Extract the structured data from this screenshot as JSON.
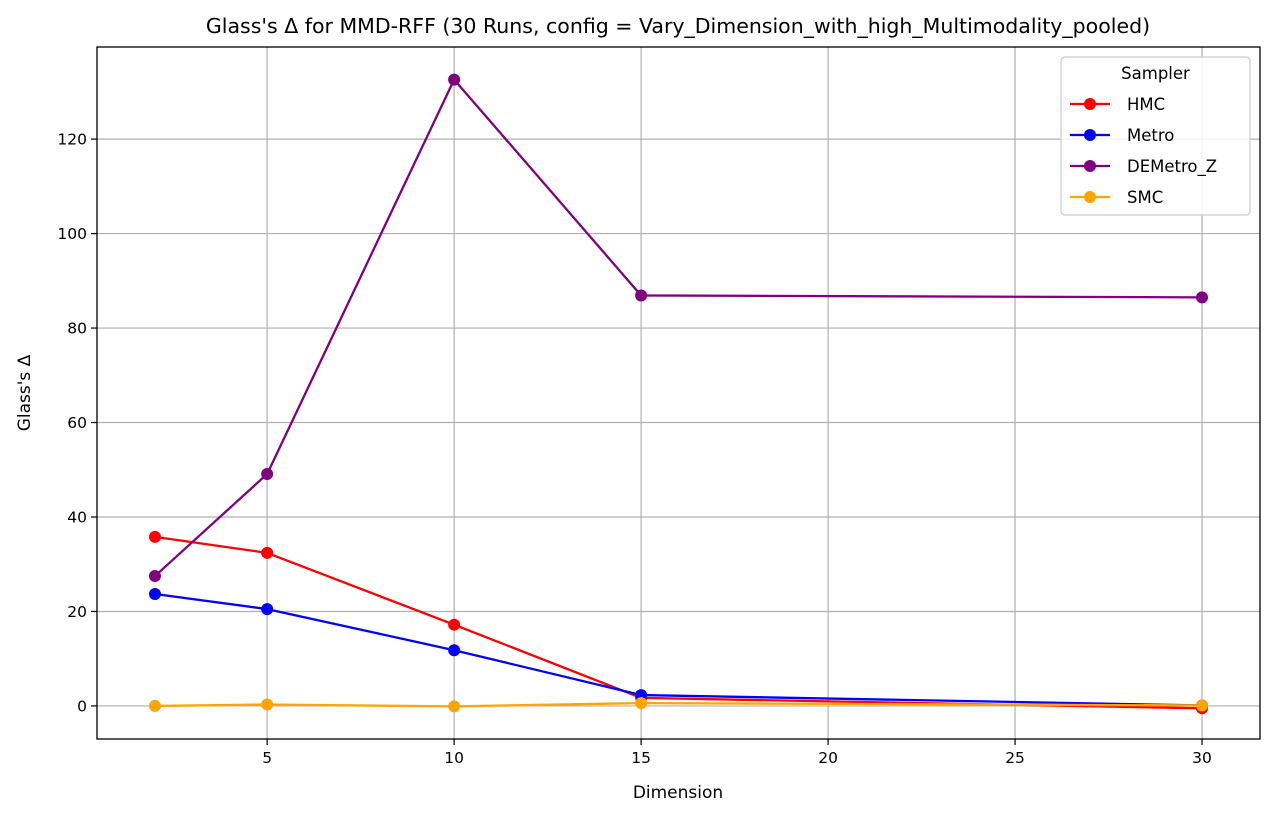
{
  "chart_data": {
    "type": "line",
    "title": "Glass's Δ for MMD-RFF (30 Runs, config = Vary_Dimension_with_high_Multimodality_pooled)",
    "xlabel": "Dimension",
    "ylabel": "Glass's Δ",
    "x": [
      2,
      5,
      10,
      15,
      30
    ],
    "xlim": [
      0.45,
      31.55
    ],
    "ylim": [
      -7,
      139.5
    ],
    "xticks": [
      5,
      10,
      15,
      20,
      25,
      30
    ],
    "yticks": [
      0,
      20,
      40,
      60,
      80,
      100,
      120
    ],
    "grid": true,
    "legend": {
      "title": "Sampler",
      "placement": "top-right"
    },
    "series": [
      {
        "name": "HMC",
        "color": "#ff0000",
        "values": [
          35.8,
          32.4,
          17.2,
          1.7,
          -0.5
        ]
      },
      {
        "name": "Metro",
        "color": "#0000ff",
        "values": [
          23.7,
          20.5,
          11.8,
          2.3,
          0.1
        ]
      },
      {
        "name": "DEMetro_Z",
        "color": "#800080",
        "values": [
          27.5,
          49.1,
          132.6,
          86.9,
          86.5
        ]
      },
      {
        "name": "SMC",
        "color": "#ffa500",
        "values": [
          0.0,
          0.3,
          -0.1,
          0.6,
          0.1
        ]
      }
    ]
  }
}
